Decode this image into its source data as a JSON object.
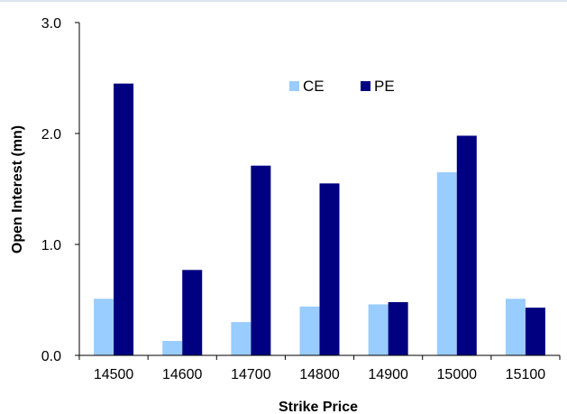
{
  "chart_data": {
    "type": "bar",
    "categories": [
      "14500",
      "14600",
      "14700",
      "14800",
      "14900",
      "15000",
      "15100"
    ],
    "series": [
      {
        "name": "CE",
        "color": "#99ccff",
        "values": [
          0.51,
          0.13,
          0.3,
          0.44,
          0.46,
          1.65,
          0.51
        ]
      },
      {
        "name": "PE",
        "color": "#000080",
        "values": [
          2.45,
          0.77,
          1.71,
          1.55,
          0.48,
          1.98,
          0.43
        ]
      }
    ],
    "title": "",
    "xlabel": "Strike Price",
    "ylabel": "Open Interest (mn)",
    "ylim": [
      0,
      3
    ],
    "yticks": [
      "0.0",
      "1.0",
      "2.0",
      "3.0"
    ],
    "grid": false,
    "legend": "top-center"
  }
}
